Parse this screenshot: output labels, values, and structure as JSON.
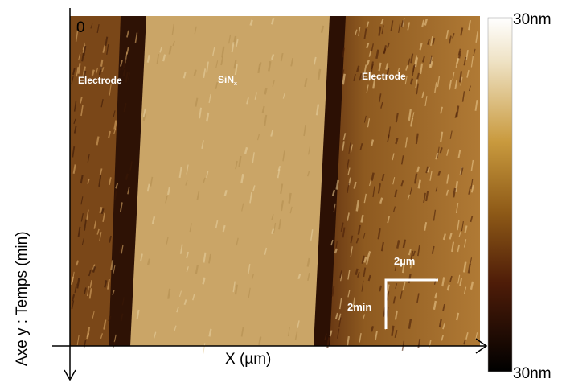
{
  "labels": {
    "origin": "0",
    "left_region": "Electrode",
    "center_region": "SiN",
    "center_subscript": "x",
    "right_region": "Electrode",
    "scale_x": "2µm",
    "scale_y": "2min",
    "x_axis": "X (µm)",
    "y_axis": "Axe y : Temps (min)",
    "colorbar_top": "30nm",
    "colorbar_bottom": "30nm"
  }
}
